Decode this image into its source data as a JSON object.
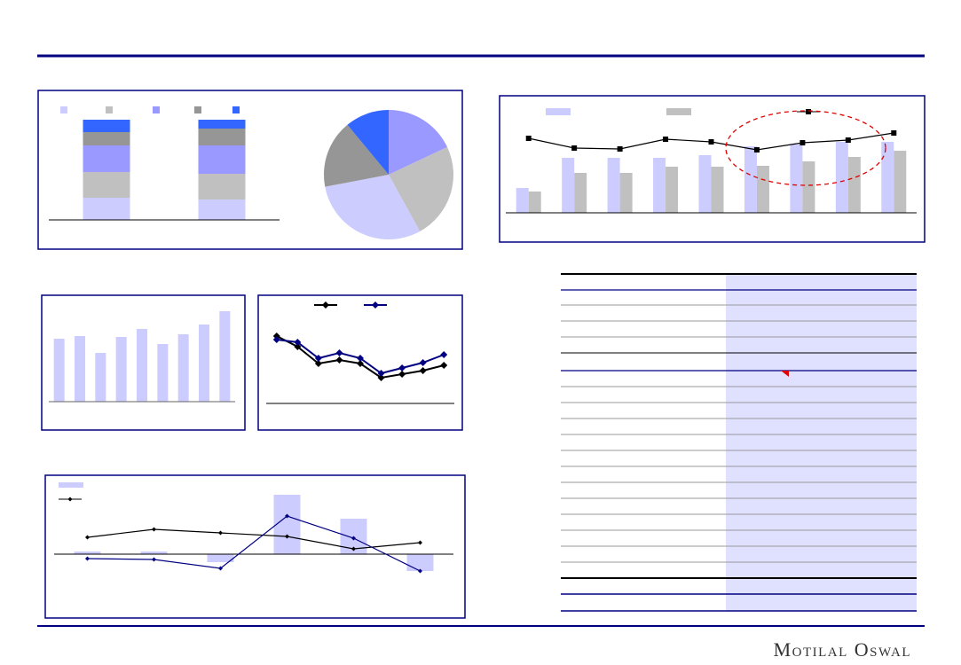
{
  "footer": {
    "brand": "Motilal Oswal"
  },
  "chart_data": [
    {
      "type": "stacked-bar",
      "ylim": [
        0,
        120
      ],
      "series": [
        {
          "color": "#ccccff",
          "values": [
            25,
            23
          ]
        },
        {
          "color": "#c0c0c0",
          "values": [
            29,
            29
          ]
        },
        {
          "color": "#9999ff",
          "values": [
            30,
            32
          ]
        },
        {
          "color": "#969696",
          "values": [
            15,
            19
          ]
        },
        {
          "color": "#3366ff",
          "values": [
            14,
            10
          ]
        }
      ]
    },
    {
      "type": "pie",
      "values": [
        18,
        24,
        30,
        17,
        11
      ],
      "colors": [
        "#9999ff",
        "#c0c0c0",
        "#ccccff",
        "#969696",
        "#3366ff"
      ]
    },
    {
      "type": "bar-line",
      "ylim": [
        0,
        120
      ],
      "series": [
        {
          "kind": "bar",
          "color": "#ccccff",
          "values": [
            28,
            62,
            62,
            62,
            65,
            75,
            77,
            80,
            80
          ]
        },
        {
          "kind": "bar",
          "color": "#c0c0c0",
          "values": [
            24,
            45,
            45,
            52,
            52,
            53,
            58,
            63,
            70
          ]
        },
        {
          "kind": "line",
          "marker": "square",
          "color": "#000000",
          "values": [
            84,
            73,
            72,
            83,
            80,
            71,
            79,
            82,
            90
          ]
        }
      ]
    },
    {
      "type": "bar",
      "ylim": [
        0,
        120
      ],
      "color": "#ccccff",
      "values": [
        71,
        74,
        55,
        73,
        82,
        65,
        76,
        87,
        102
      ]
    },
    {
      "type": "line",
      "ylim": [
        0,
        120
      ],
      "series": [
        {
          "marker": "diamond",
          "color": "#000000",
          "values": [
            76,
            64,
            45,
            49,
            45,
            29,
            33,
            37,
            43
          ]
        },
        {
          "marker": "diamond",
          "color": "#000080",
          "values": [
            72,
            69,
            51,
            57,
            51,
            34,
            40,
            46,
            55
          ]
        }
      ]
    },
    {
      "type": "bar-line",
      "ylim": [
        -70,
        80
      ],
      "series": [
        {
          "kind": "bar",
          "color": "#ccccff",
          "values": [
            3,
            3,
            -9,
            67,
            40,
            -19
          ]
        },
        {
          "kind": "line",
          "marker": "dot",
          "color": "#000000",
          "values": [
            19,
            28,
            24,
            20,
            6,
            13
          ]
        },
        {
          "kind": "line",
          "marker": "dot",
          "color": "#000080",
          "values": [
            -5,
            -6,
            -16,
            43,
            18,
            -19
          ]
        }
      ]
    }
  ]
}
